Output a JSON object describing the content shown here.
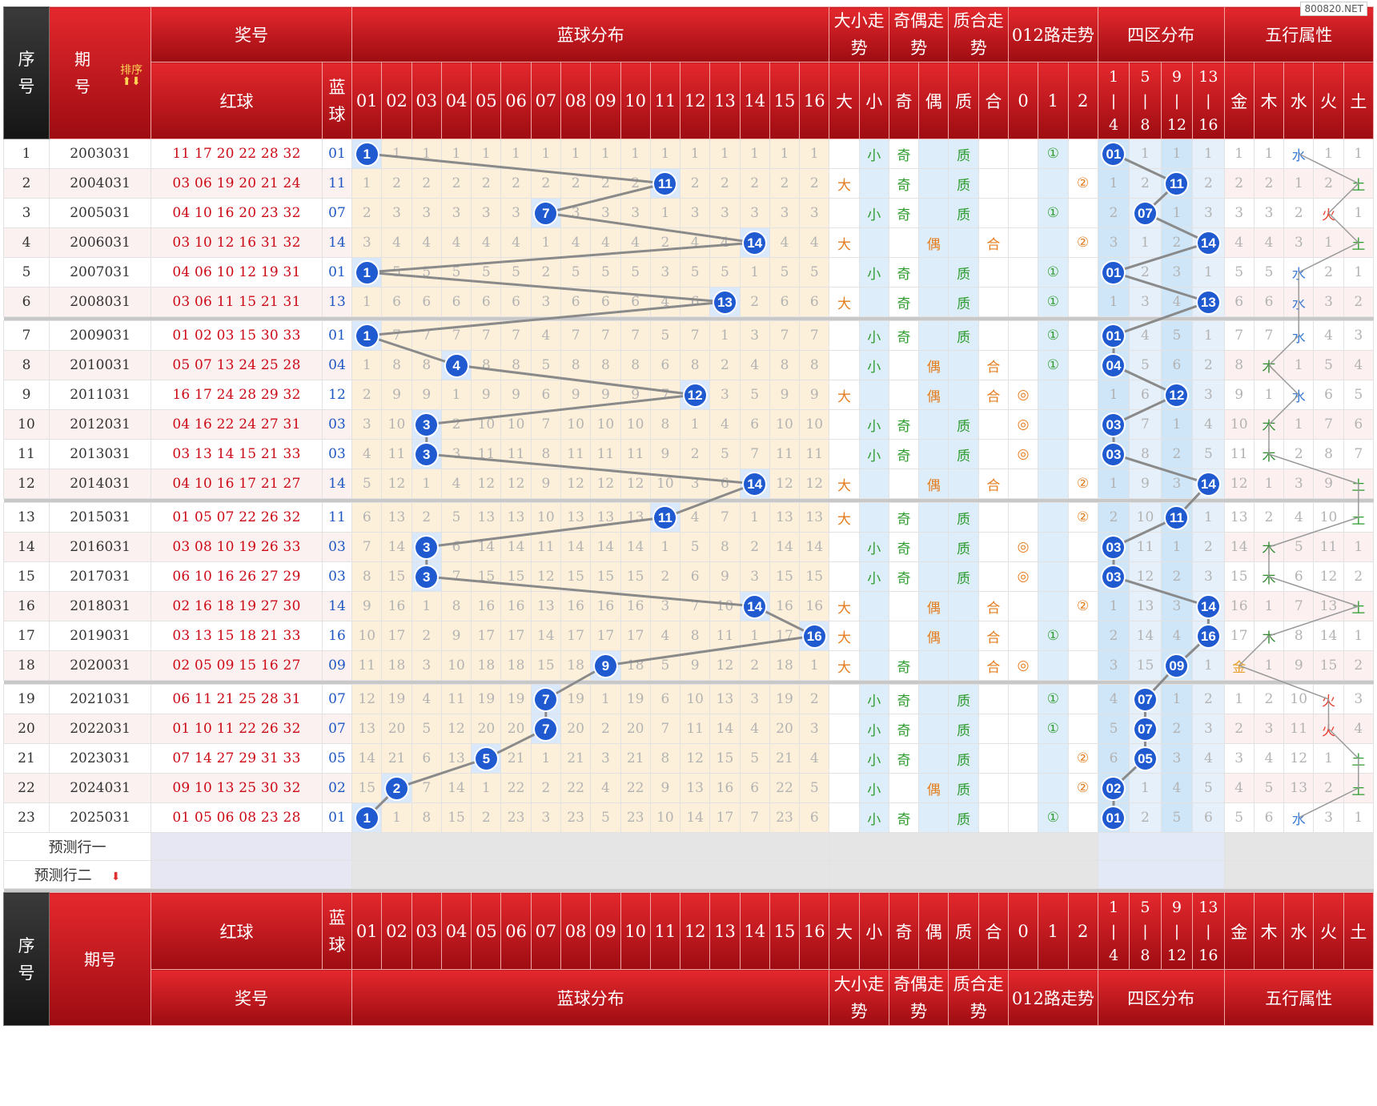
{
  "watermark": "800820.NET",
  "header": {
    "idx": [
      "序",
      "号"
    ],
    "issue": [
      "期",
      "号"
    ],
    "sort": "排序",
    "sort_arrows": "⬆⬇",
    "award": "奖号",
    "blue_dist": "蓝球分布",
    "dx": [
      "大小走",
      "势"
    ],
    "jo": [
      "奇偶走",
      "势"
    ],
    "zh": [
      "质合走",
      "势"
    ],
    "r012": "012路走势",
    "quad": "四区分布",
    "wx": "五行属性",
    "red": "红球",
    "blue": [
      "蓝",
      "球"
    ],
    "nums": [
      "01",
      "02",
      "03",
      "04",
      "05",
      "06",
      "07",
      "08",
      "09",
      "10",
      "11",
      "12",
      "13",
      "14",
      "15",
      "16"
    ],
    "dx_sub": [
      "大",
      "小"
    ],
    "jo_sub": [
      "奇",
      "偶"
    ],
    "zh_sub": [
      "质",
      "合"
    ],
    "r_sub": [
      "0",
      "1",
      "2"
    ],
    "quad_sub": [
      [
        "1",
        "|",
        "4"
      ],
      [
        "5",
        "|",
        "8"
      ],
      [
        "9",
        "|",
        "12"
      ],
      [
        "13",
        "|",
        "16"
      ]
    ],
    "wx_sub": [
      "金",
      "木",
      "水",
      "火",
      "土"
    ]
  },
  "rows": [
    {
      "i": "1",
      "p": "2003031",
      "r": "11 17 20 22 28 32",
      "b": "01",
      "d": [
        "B",
        "1",
        "1",
        "1",
        "1",
        "1",
        "1",
        "1",
        "1",
        "1",
        "1",
        "1",
        "1",
        "1",
        "1",
        "1"
      ],
      "dx": [
        "",
        "小"
      ],
      "jo": [
        "奇",
        ""
      ],
      "zh": [
        "质",
        ""
      ],
      "r012": [
        "",
        "①",
        ""
      ],
      "q": [
        "B",
        "1",
        "1",
        "1"
      ],
      "wx": [
        "1",
        "1",
        "水",
        "1",
        "1"
      ]
    },
    {
      "i": "2",
      "p": "2004031",
      "r": "03 06 19 20 21 24",
      "b": "11",
      "d": [
        "1",
        "2",
        "2",
        "2",
        "2",
        "2",
        "2",
        "2",
        "2",
        "2",
        "B",
        "2",
        "2",
        "2",
        "2",
        "2"
      ],
      "dx": [
        "大",
        ""
      ],
      "jo": [
        "奇",
        ""
      ],
      "zh": [
        "质",
        ""
      ],
      "r012": [
        "",
        "",
        "②"
      ],
      "q": [
        "1",
        "2",
        "B",
        "2"
      ],
      "wx": [
        "2",
        "2",
        "1",
        "2",
        "土"
      ]
    },
    {
      "i": "3",
      "p": "2005031",
      "r": "04 10 16 20 23 32",
      "b": "07",
      "d": [
        "2",
        "3",
        "3",
        "3",
        "3",
        "3",
        "B",
        "3",
        "3",
        "3",
        "1",
        "3",
        "3",
        "3",
        "3",
        "3"
      ],
      "dx": [
        "",
        "小"
      ],
      "jo": [
        "奇",
        ""
      ],
      "zh": [
        "质",
        ""
      ],
      "r012": [
        "",
        "①",
        ""
      ],
      "q": [
        "2",
        "B",
        "1",
        "3"
      ],
      "wx": [
        "3",
        "3",
        "2",
        "火",
        "1"
      ]
    },
    {
      "i": "4",
      "p": "2006031",
      "r": "03 10 12 16 31 32",
      "b": "14",
      "d": [
        "3",
        "4",
        "4",
        "4",
        "4",
        "4",
        "1",
        "4",
        "4",
        "4",
        "2",
        "4",
        "4",
        "B",
        "4",
        "4"
      ],
      "dx": [
        "大",
        ""
      ],
      "jo": [
        "",
        "偶"
      ],
      "zh": [
        "",
        "合"
      ],
      "r012": [
        "",
        "",
        "②"
      ],
      "q": [
        "3",
        "1",
        "2",
        "B"
      ],
      "wx": [
        "4",
        "4",
        "3",
        "1",
        "土"
      ]
    },
    {
      "i": "5",
      "p": "2007031",
      "r": "04 06 10 12 19 31",
      "b": "01",
      "d": [
        "B",
        "5",
        "5",
        "5",
        "5",
        "5",
        "2",
        "5",
        "5",
        "5",
        "3",
        "5",
        "5",
        "1",
        "5",
        "5"
      ],
      "dx": [
        "",
        "小"
      ],
      "jo": [
        "奇",
        ""
      ],
      "zh": [
        "质",
        ""
      ],
      "r012": [
        "",
        "①",
        ""
      ],
      "q": [
        "B",
        "2",
        "3",
        "1"
      ],
      "wx": [
        "5",
        "5",
        "水",
        "2",
        "1"
      ]
    },
    {
      "i": "6",
      "p": "2008031",
      "r": "03 06 11 15 21 31",
      "b": "13",
      "d": [
        "1",
        "6",
        "6",
        "6",
        "6",
        "6",
        "3",
        "6",
        "6",
        "6",
        "4",
        "6",
        "B",
        "2",
        "6",
        "6"
      ],
      "dx": [
        "大",
        ""
      ],
      "jo": [
        "奇",
        ""
      ],
      "zh": [
        "质",
        ""
      ],
      "r012": [
        "",
        "①",
        ""
      ],
      "q": [
        "1",
        "3",
        "4",
        "B"
      ],
      "wx": [
        "6",
        "6",
        "水",
        "3",
        "2"
      ]
    },
    {
      "i": "7",
      "p": "2009031",
      "r": "01 02 03 15 30 33",
      "b": "01",
      "d": [
        "B",
        "7",
        "7",
        "7",
        "7",
        "7",
        "4",
        "7",
        "7",
        "7",
        "5",
        "7",
        "1",
        "3",
        "7",
        "7"
      ],
      "dx": [
        "",
        "小"
      ],
      "jo": [
        "奇",
        ""
      ],
      "zh": [
        "质",
        ""
      ],
      "r012": [
        "",
        "①",
        ""
      ],
      "q": [
        "B",
        "4",
        "5",
        "1"
      ],
      "wx": [
        "7",
        "7",
        "水",
        "4",
        "3"
      ]
    },
    {
      "i": "8",
      "p": "2010031",
      "r": "05 07 13 24 25 28",
      "b": "04",
      "d": [
        "1",
        "8",
        "8",
        "B",
        "8",
        "8",
        "5",
        "8",
        "8",
        "8",
        "6",
        "8",
        "2",
        "4",
        "8",
        "8"
      ],
      "dx": [
        "",
        "小"
      ],
      "jo": [
        "",
        "偶"
      ],
      "zh": [
        "",
        "合"
      ],
      "r012": [
        "",
        "①",
        ""
      ],
      "q": [
        "B",
        "5",
        "6",
        "2"
      ],
      "wx": [
        "8",
        "木",
        "1",
        "5",
        "4"
      ]
    },
    {
      "i": "9",
      "p": "2011031",
      "r": "16 17 24 28 29 32",
      "b": "12",
      "d": [
        "2",
        "9",
        "9",
        "1",
        "9",
        "9",
        "6",
        "9",
        "9",
        "9",
        "7",
        "B",
        "3",
        "5",
        "9",
        "9"
      ],
      "dx": [
        "大",
        ""
      ],
      "jo": [
        "",
        "偶"
      ],
      "zh": [
        "",
        "合"
      ],
      "r012": [
        "◎",
        "",
        ""
      ],
      "q": [
        "1",
        "6",
        "B",
        "3"
      ],
      "wx": [
        "9",
        "1",
        "水",
        "6",
        "5"
      ]
    },
    {
      "i": "10",
      "p": "2012031",
      "r": "04 16 22 24 27 31",
      "b": "03",
      "d": [
        "3",
        "10",
        "B",
        "2",
        "10",
        "10",
        "7",
        "10",
        "10",
        "10",
        "8",
        "1",
        "4",
        "6",
        "10",
        "10"
      ],
      "dx": [
        "",
        "小"
      ],
      "jo": [
        "奇",
        ""
      ],
      "zh": [
        "质",
        ""
      ],
      "r012": [
        "◎",
        "",
        ""
      ],
      "q": [
        "B",
        "7",
        "1",
        "4"
      ],
      "wx": [
        "10",
        "木",
        "1",
        "7",
        "6"
      ]
    },
    {
      "i": "11",
      "p": "2013031",
      "r": "03 13 14 15 21 33",
      "b": "03",
      "d": [
        "4",
        "11",
        "B",
        "3",
        "11",
        "11",
        "8",
        "11",
        "11",
        "11",
        "9",
        "2",
        "5",
        "7",
        "11",
        "11"
      ],
      "dx": [
        "",
        "小"
      ],
      "jo": [
        "奇",
        ""
      ],
      "zh": [
        "质",
        ""
      ],
      "r012": [
        "◎",
        "",
        ""
      ],
      "q": [
        "B",
        "8",
        "2",
        "5"
      ],
      "wx": [
        "11",
        "木",
        "2",
        "8",
        "7"
      ]
    },
    {
      "i": "12",
      "p": "2014031",
      "r": "04 10 16 17 21 27",
      "b": "14",
      "d": [
        "5",
        "12",
        "1",
        "4",
        "12",
        "12",
        "9",
        "12",
        "12",
        "12",
        "10",
        "3",
        "6",
        "B",
        "12",
        "12"
      ],
      "dx": [
        "大",
        ""
      ],
      "jo": [
        "",
        "偶"
      ],
      "zh": [
        "",
        "合"
      ],
      "r012": [
        "",
        "",
        "②"
      ],
      "q": [
        "1",
        "9",
        "3",
        "B"
      ],
      "wx": [
        "12",
        "1",
        "3",
        "9",
        "土"
      ]
    },
    {
      "i": "13",
      "p": "2015031",
      "r": "01 05 07 22 26 32",
      "b": "11",
      "d": [
        "6",
        "13",
        "2",
        "5",
        "13",
        "13",
        "10",
        "13",
        "13",
        "13",
        "B",
        "4",
        "7",
        "1",
        "13",
        "13"
      ],
      "dx": [
        "大",
        ""
      ],
      "jo": [
        "奇",
        ""
      ],
      "zh": [
        "质",
        ""
      ],
      "r012": [
        "",
        "",
        "②"
      ],
      "q": [
        "2",
        "10",
        "B",
        "1"
      ],
      "wx": [
        "13",
        "2",
        "4",
        "10",
        "土"
      ]
    },
    {
      "i": "14",
      "p": "2016031",
      "r": "03 08 10 19 26 33",
      "b": "03",
      "d": [
        "7",
        "14",
        "B",
        "6",
        "14",
        "14",
        "11",
        "14",
        "14",
        "14",
        "1",
        "5",
        "8",
        "2",
        "14",
        "14"
      ],
      "dx": [
        "",
        "小"
      ],
      "jo": [
        "奇",
        ""
      ],
      "zh": [
        "质",
        ""
      ],
      "r012": [
        "◎",
        "",
        ""
      ],
      "q": [
        "B",
        "11",
        "1",
        "2"
      ],
      "wx": [
        "14",
        "木",
        "5",
        "11",
        "1"
      ]
    },
    {
      "i": "15",
      "p": "2017031",
      "r": "06 10 16 26 27 29",
      "b": "03",
      "d": [
        "8",
        "15",
        "B",
        "7",
        "15",
        "15",
        "12",
        "15",
        "15",
        "15",
        "2",
        "6",
        "9",
        "3",
        "15",
        "15"
      ],
      "dx": [
        "",
        "小"
      ],
      "jo": [
        "奇",
        ""
      ],
      "zh": [
        "质",
        ""
      ],
      "r012": [
        "◎",
        "",
        ""
      ],
      "q": [
        "B",
        "12",
        "2",
        "3"
      ],
      "wx": [
        "15",
        "木",
        "6",
        "12",
        "2"
      ]
    },
    {
      "i": "16",
      "p": "2018031",
      "r": "02 16 18 19 27 30",
      "b": "14",
      "d": [
        "9",
        "16",
        "1",
        "8",
        "16",
        "16",
        "13",
        "16",
        "16",
        "16",
        "3",
        "7",
        "10",
        "B",
        "16",
        "16"
      ],
      "dx": [
        "大",
        ""
      ],
      "jo": [
        "",
        "偶"
      ],
      "zh": [
        "",
        "合"
      ],
      "r012": [
        "",
        "",
        "②"
      ],
      "q": [
        "1",
        "13",
        "3",
        "B"
      ],
      "wx": [
        "16",
        "1",
        "7",
        "13",
        "土"
      ]
    },
    {
      "i": "17",
      "p": "2019031",
      "r": "03 13 15 18 21 33",
      "b": "16",
      "d": [
        "10",
        "17",
        "2",
        "9",
        "17",
        "17",
        "14",
        "17",
        "17",
        "17",
        "4",
        "8",
        "11",
        "1",
        "17",
        "B"
      ],
      "dx": [
        "大",
        ""
      ],
      "jo": [
        "",
        "偶"
      ],
      "zh": [
        "",
        "合"
      ],
      "r012": [
        "",
        "①",
        ""
      ],
      "q": [
        "2",
        "14",
        "4",
        "B"
      ],
      "wx": [
        "17",
        "木",
        "8",
        "14",
        "1"
      ]
    },
    {
      "i": "18",
      "p": "2020031",
      "r": "02 05 09 15 16 27",
      "b": "09",
      "d": [
        "11",
        "18",
        "3",
        "10",
        "18",
        "18",
        "15",
        "18",
        "B",
        "18",
        "5",
        "9",
        "12",
        "2",
        "18",
        "1"
      ],
      "dx": [
        "大",
        ""
      ],
      "jo": [
        "奇",
        ""
      ],
      "zh": [
        "",
        "合"
      ],
      "r012": [
        "◎",
        "",
        ""
      ],
      "q": [
        "3",
        "15",
        "B",
        "1"
      ],
      "wx": [
        "金",
        "1",
        "9",
        "15",
        "2"
      ]
    },
    {
      "i": "19",
      "p": "2021031",
      "r": "06 11 21 25 28 31",
      "b": "07",
      "d": [
        "12",
        "19",
        "4",
        "11",
        "19",
        "19",
        "B",
        "19",
        "1",
        "19",
        "6",
        "10",
        "13",
        "3",
        "19",
        "2"
      ],
      "dx": [
        "",
        "小"
      ],
      "jo": [
        "奇",
        ""
      ],
      "zh": [
        "质",
        ""
      ],
      "r012": [
        "",
        "①",
        ""
      ],
      "q": [
        "4",
        "B",
        "1",
        "2"
      ],
      "wx": [
        "1",
        "2",
        "10",
        "火",
        "3"
      ]
    },
    {
      "i": "20",
      "p": "2022031",
      "r": "01 10 11 22 26 32",
      "b": "07",
      "d": [
        "13",
        "20",
        "5",
        "12",
        "20",
        "20",
        "B",
        "20",
        "2",
        "20",
        "7",
        "11",
        "14",
        "4",
        "20",
        "3"
      ],
      "dx": [
        "",
        "小"
      ],
      "jo": [
        "奇",
        ""
      ],
      "zh": [
        "质",
        ""
      ],
      "r012": [
        "",
        "①",
        ""
      ],
      "q": [
        "5",
        "B",
        "2",
        "3"
      ],
      "wx": [
        "2",
        "3",
        "11",
        "火",
        "4"
      ]
    },
    {
      "i": "21",
      "p": "2023031",
      "r": "07 14 27 29 31 33",
      "b": "05",
      "d": [
        "14",
        "21",
        "6",
        "13",
        "B",
        "21",
        "1",
        "21",
        "3",
        "21",
        "8",
        "12",
        "15",
        "5",
        "21",
        "4"
      ],
      "dx": [
        "",
        "小"
      ],
      "jo": [
        "奇",
        ""
      ],
      "zh": [
        "质",
        ""
      ],
      "r012": [
        "",
        "",
        "②"
      ],
      "q": [
        "6",
        "B",
        "3",
        "4"
      ],
      "wx": [
        "3",
        "4",
        "12",
        "1",
        "土"
      ]
    },
    {
      "i": "22",
      "p": "2024031",
      "r": "09 10 13 25 30 32",
      "b": "02",
      "d": [
        "15",
        "B",
        "7",
        "14",
        "1",
        "22",
        "2",
        "22",
        "4",
        "22",
        "9",
        "13",
        "16",
        "6",
        "22",
        "5"
      ],
      "dx": [
        "",
        "小"
      ],
      "jo": [
        "",
        "偶"
      ],
      "zh": [
        "质",
        ""
      ],
      "r012": [
        "",
        "",
        "②"
      ],
      "q": [
        "B",
        "1",
        "4",
        "5"
      ],
      "wx": [
        "4",
        "5",
        "13",
        "2",
        "土"
      ]
    },
    {
      "i": "23",
      "p": "2025031",
      "r": "01 05 06 08 23 28",
      "b": "01",
      "d": [
        "B",
        "1",
        "8",
        "15",
        "2",
        "23",
        "3",
        "23",
        "5",
        "23",
        "10",
        "14",
        "17",
        "7",
        "23",
        "6"
      ],
      "dx": [
        "",
        "小"
      ],
      "jo": [
        "奇",
        ""
      ],
      "zh": [
        "质",
        ""
      ],
      "r012": [
        "",
        "①",
        ""
      ],
      "q": [
        "B",
        "2",
        "5",
        "6"
      ],
      "wx": [
        "5",
        "6",
        "水",
        "3",
        "1"
      ]
    }
  ],
  "predict": [
    "预测行一",
    "预测行二"
  ]
}
